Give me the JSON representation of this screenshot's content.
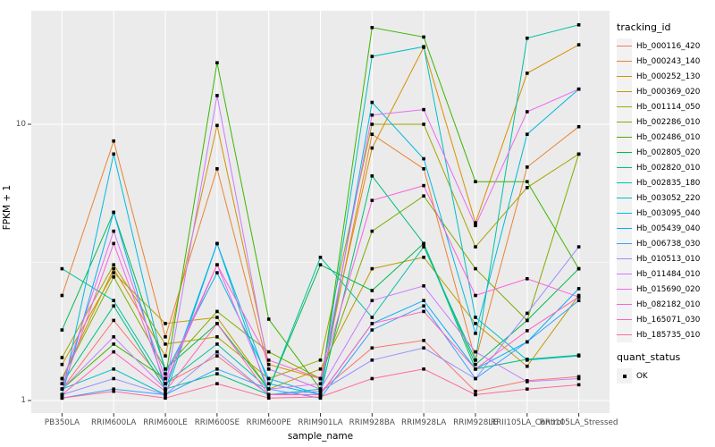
{
  "chart_data": {
    "type": "line",
    "xlabel": "sample_name",
    "ylabel": "FPKM + 1",
    "y_scale": "log10",
    "ylim": [
      0.9,
      26
    ],
    "grid": true,
    "legend_position": "right",
    "legend_title": "tracking_id",
    "y_ticks": [
      {
        "label": "1",
        "value": 1
      },
      {
        "label": "10",
        "value": 10
      }
    ],
    "y_minor_ticks": [
      3.162
    ],
    "categories": [
      "PB350LA",
      "RRIM600LA",
      "RRIM600LE",
      "RRIM600SE",
      "RRIM600PE",
      "RRIM901LA",
      "RRIM928BA",
      "RRIM928LA",
      "RRIM928LE",
      "RRII105LA_Control",
      "RRII105LA_Stressed"
    ],
    "point_shape": "square",
    "point_color": "#000000",
    "panel_background": "#ebebeb",
    "gridline_color": "#ffffff",
    "series": [
      {
        "name": "Hb_000116_420",
        "color": "#F8766D",
        "values": [
          1.1,
          1.95,
          1.15,
          1.45,
          1.05,
          1.08,
          1.55,
          1.65,
          1.08,
          1.18,
          1.22
        ]
      },
      {
        "name": "Hb_000243_140",
        "color": "#EA8331",
        "values": [
          2.4,
          8.7,
          1.7,
          6.9,
          1.3,
          1.1,
          9.2,
          6.9,
          1.4,
          7.0,
          9.8
        ]
      },
      {
        "name": "Hb_000252_130",
        "color": "#D89000",
        "values": [
          1.2,
          3.0,
          1.45,
          9.9,
          1.35,
          1.2,
          8.2,
          19.0,
          4.4,
          15.3,
          19.4
        ]
      },
      {
        "name": "Hb_000369_020",
        "color": "#C09B00",
        "values": [
          1.35,
          2.9,
          1.9,
          2.0,
          1.1,
          1.3,
          3.0,
          3.3,
          1.9,
          1.33,
          2.4
        ]
      },
      {
        "name": "Hb_001114_050",
        "color": "#A3A500",
        "values": [
          1.43,
          3.1,
          1.6,
          1.7,
          1.2,
          1.4,
          10.0,
          10.0,
          3.6,
          5.9,
          7.8
        ]
      },
      {
        "name": "Hb_002286_010",
        "color": "#7CAE00",
        "values": [
          1.2,
          2.8,
          1.3,
          2.1,
          1.5,
          1.2,
          4.1,
          5.5,
          3.0,
          1.95,
          7.8
        ]
      },
      {
        "name": "Hb_002486_010",
        "color": "#39B600",
        "values": [
          1.1,
          1.6,
          1.2,
          16.7,
          1.97,
          1.1,
          22.4,
          20.7,
          6.2,
          6.2,
          3.0
        ]
      },
      {
        "name": "Hb_002805_020",
        "color": "#00BB4E",
        "values": [
          1.8,
          4.8,
          1.3,
          1.9,
          1.1,
          3.1,
          2.5,
          3.7,
          1.35,
          1.95,
          3.0
        ]
      },
      {
        "name": "Hb_002820_010",
        "color": "#00BF7D",
        "values": [
          1.15,
          2.2,
          1.1,
          1.25,
          1.05,
          1.05,
          6.5,
          3.7,
          1.3,
          1.41,
          1.46
        ]
      },
      {
        "name": "Hb_002835_180",
        "color": "#00C1A3",
        "values": [
          3.0,
          2.3,
          1.15,
          1.6,
          1.1,
          3.3,
          2.0,
          3.6,
          1.4,
          20.5,
          22.9
        ]
      },
      {
        "name": "Hb_003052_220",
        "color": "#00BFC4",
        "values": [
          1.1,
          1.3,
          1.05,
          3.7,
          1.05,
          1.1,
          17.6,
          19.1,
          2.0,
          1.4,
          1.45
        ]
      },
      {
        "name": "Hb_003095_040",
        "color": "#00BADE",
        "values": [
          1.05,
          7.8,
          1.25,
          2.9,
          1.2,
          1.05,
          12.0,
          7.5,
          1.75,
          9.2,
          13.4
        ]
      },
      {
        "name": "Hb_005439_040",
        "color": "#00B0F6",
        "values": [
          1.05,
          4.8,
          1.1,
          3.7,
          1.15,
          1.05,
          1.9,
          2.3,
          1.3,
          1.63,
          2.54
        ]
      },
      {
        "name": "Hb_006738_030",
        "color": "#35A2FF",
        "values": [
          1.02,
          1.1,
          1.05,
          1.3,
          1.1,
          1.02,
          1.8,
          2.2,
          1.2,
          1.63,
          2.3
        ]
      },
      {
        "name": "Hb_010513_010",
        "color": "#9590FF",
        "values": [
          1.05,
          1.2,
          1.05,
          1.5,
          1.05,
          1.08,
          1.4,
          1.55,
          1.2,
          2.07,
          3.6
        ]
      },
      {
        "name": "Hb_011484_010",
        "color": "#C77CFF",
        "values": [
          1.1,
          1.7,
          1.1,
          12.7,
          1.3,
          1.1,
          2.3,
          2.6,
          1.5,
          1.17,
          1.2
        ]
      },
      {
        "name": "Hb_015690_020",
        "color": "#E76BF3",
        "values": [
          1.15,
          4.1,
          1.2,
          3.1,
          1.1,
          1.15,
          10.8,
          11.3,
          4.3,
          11.1,
          13.4
        ]
      },
      {
        "name": "Hb_082182_010",
        "color": "#FA62DB",
        "values": [
          1.1,
          3.7,
          1.15,
          3.1,
          1.4,
          1.2,
          5.3,
          6.0,
          2.4,
          2.76,
          2.37
        ]
      },
      {
        "name": "Hb_165071_030",
        "color": "#FF62BC",
        "values": [
          1.05,
          1.5,
          1.08,
          1.9,
          1.05,
          1.05,
          1.9,
          2.1,
          1.3,
          1.79,
          2.37
        ]
      },
      {
        "name": "Hb_185735_010",
        "color": "#FF6A98",
        "values": [
          1.02,
          1.08,
          1.02,
          1.15,
          1.02,
          1.03,
          1.2,
          1.3,
          1.05,
          1.1,
          1.14
        ]
      }
    ],
    "quant_status": {
      "title": "quant_status",
      "items": [
        {
          "label": "OK",
          "shape": "square",
          "color": "#000000"
        }
      ]
    }
  }
}
